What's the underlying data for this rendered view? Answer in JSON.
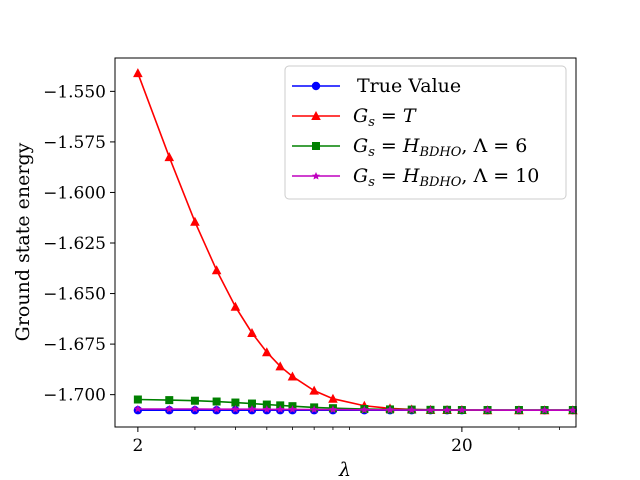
{
  "chart_data": {
    "type": "line",
    "xlabel": "λ",
    "ylabel": "Ground state energy",
    "xscale": "log",
    "xlim": [
      1.7,
      45
    ],
    "ylim": [
      -1.716,
      -1.5335
    ],
    "x_ticks": [
      {
        "value": 2,
        "label": "2"
      },
      {
        "value": 20,
        "label": "20"
      }
    ],
    "y_ticks": [
      {
        "value": -1.55,
        "label": "−1.550"
      },
      {
        "value": -1.575,
        "label": "−1.575"
      },
      {
        "value": -1.6,
        "label": "−1.600"
      },
      {
        "value": -1.625,
        "label": "−1.625"
      },
      {
        "value": -1.65,
        "label": "−1.650"
      },
      {
        "value": -1.675,
        "label": "−1.675"
      },
      {
        "value": -1.7,
        "label": "−1.700"
      }
    ],
    "grid": false,
    "legend_position": "top-right",
    "x": [
      2,
      2.5,
      3,
      3.5,
      4,
      4.5,
      5,
      5.5,
      6,
      7,
      8,
      10,
      12,
      14,
      16,
      18,
      20,
      24,
      30,
      36,
      44
    ],
    "series": [
      {
        "name": "True Value",
        "color": "#0000ff",
        "marker": "circle",
        "values": [
          -1.7077,
          -1.7077,
          -1.7077,
          -1.7077,
          -1.7077,
          -1.7077,
          -1.7077,
          -1.7077,
          -1.7077,
          -1.7077,
          -1.7077,
          -1.7077,
          -1.7077,
          -1.7077,
          -1.7077,
          -1.7077,
          -1.7077,
          -1.7077,
          -1.7077,
          -1.7077,
          -1.7077
        ]
      },
      {
        "name": "G_s = T",
        "color": "#ff0000",
        "marker": "triangle",
        "values": [
          -1.541,
          -1.5825,
          -1.6145,
          -1.6385,
          -1.6565,
          -1.6695,
          -1.679,
          -1.686,
          -1.691,
          -1.698,
          -1.702,
          -1.7055,
          -1.7068,
          -1.7073,
          -1.7075,
          -1.7076,
          -1.7076,
          -1.7077,
          -1.7077,
          -1.7077,
          -1.7077
        ]
      },
      {
        "name": "G_s = H_BDHO, Λ = 6",
        "color": "#008000",
        "marker": "square",
        "values": [
          -1.7024,
          -1.7027,
          -1.703,
          -1.7034,
          -1.7039,
          -1.7044,
          -1.7049,
          -1.7053,
          -1.7057,
          -1.7063,
          -1.7067,
          -1.7071,
          -1.7073,
          -1.7074,
          -1.7075,
          -1.7075,
          -1.7076,
          -1.7076,
          -1.7076,
          -1.7076,
          -1.7076
        ]
      },
      {
        "name": "G_s = H_BDHO, Λ = 10",
        "color": "#bf00bf",
        "marker": "star",
        "values": [
          -1.7071,
          -1.7071,
          -1.7071,
          -1.7072,
          -1.7072,
          -1.7072,
          -1.7073,
          -1.7073,
          -1.7073,
          -1.7074,
          -1.7074,
          -1.7075,
          -1.7075,
          -1.7076,
          -1.7076,
          -1.7076,
          -1.7076,
          -1.7076,
          -1.7077,
          -1.7077,
          -1.7077
        ]
      }
    ]
  }
}
